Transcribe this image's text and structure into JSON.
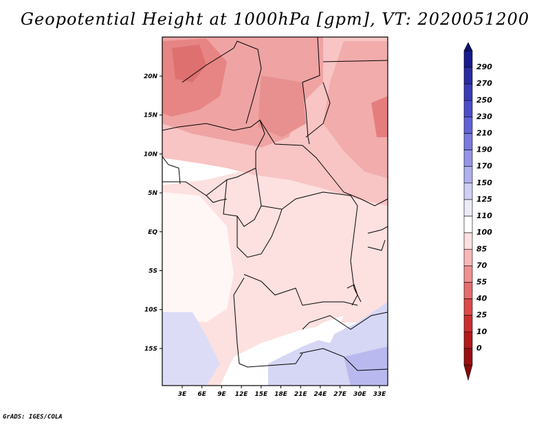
{
  "title": "Geopotential Height at 1000hPa [gpm], VT: 2020051200",
  "credit": "GrADS: IGES/COLA",
  "map": {
    "lon_labels": [
      "3E",
      "6E",
      "9E",
      "12E",
      "15E",
      "18E",
      "21E",
      "24E",
      "27E",
      "30E",
      "33E"
    ],
    "lat_labels": [
      "20N",
      "15N",
      "10N",
      "5N",
      "EQ",
      "5S",
      "10S",
      "15S"
    ]
  },
  "colorbar": {
    "labels": [
      "290",
      "270",
      "250",
      "230",
      "210",
      "190",
      "170",
      "150",
      "125",
      "110",
      "100",
      "85",
      "70",
      "55",
      "40",
      "25",
      "10",
      "0"
    ],
    "colors": [
      "#1a1a8c",
      "#2b2ba3",
      "#3b3bb8",
      "#4d4dc9",
      "#6262d6",
      "#7a7ae0",
      "#9494e8",
      "#b0b0ef",
      "#cfcff5",
      "#ebebfa",
      "#ffffff",
      "#fde0e0",
      "#f8b8b8",
      "#f09090",
      "#e66d6d",
      "#dc4a4a",
      "#cc2e2e",
      "#b21a1a",
      "#9a0f0f"
    ]
  }
}
